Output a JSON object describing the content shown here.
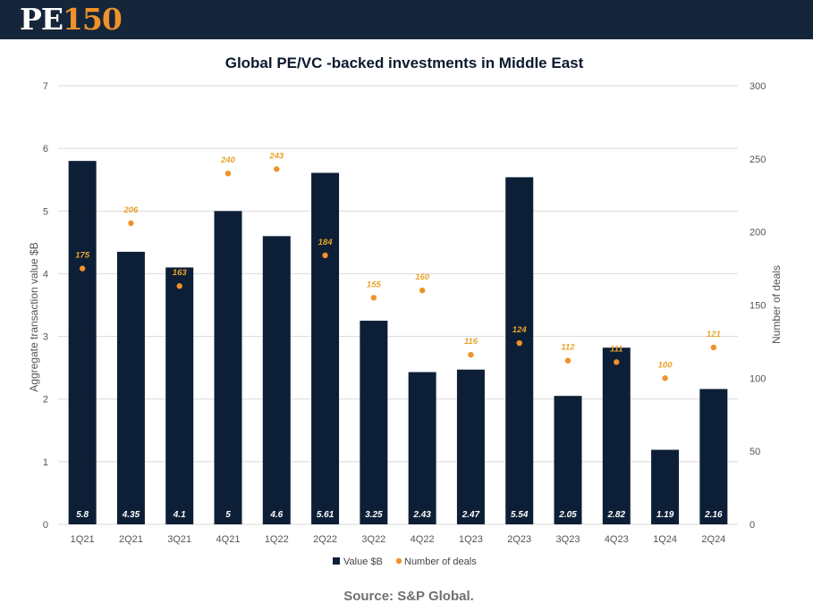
{
  "header": {
    "logo_text_pe": "PE",
    "logo_text_num": "150",
    "logo_colors": {
      "pe": "#ffffff",
      "num": "#f0922b",
      "background": "#16263a"
    }
  },
  "source_text": "Source: S&P Global.",
  "chart_data": {
    "type": "bar",
    "title": "Global PE/VC -backed investments in Middle East",
    "categories": [
      "1Q21",
      "2Q21",
      "3Q21",
      "4Q21",
      "1Q22",
      "2Q22",
      "3Q22",
      "4Q22",
      "1Q23",
      "2Q23",
      "3Q23",
      "4Q23",
      "1Q24",
      "2Q24"
    ],
    "series": [
      {
        "name": "Value $B",
        "type": "bar",
        "axis": "left",
        "color": "#0d1f36",
        "values": [
          5.8,
          4.35,
          4.1,
          5,
          4.6,
          5.61,
          3.25,
          2.43,
          2.47,
          5.54,
          2.05,
          2.82,
          1.19,
          2.16
        ],
        "labels": [
          "5.8",
          "4.35",
          "4.1",
          "5",
          "4.6",
          "5.61",
          "3.25",
          "2.43",
          "2.47",
          "5.54",
          "2.05",
          "2.82",
          "1.19",
          "2.16"
        ]
      },
      {
        "name": "Number of deals",
        "type": "scatter",
        "axis": "right",
        "color": "#f0922b",
        "label_color": "#e8a32b",
        "values": [
          175,
          206,
          163,
          240,
          243,
          184,
          155,
          160,
          116,
          124,
          112,
          111,
          100,
          121
        ],
        "labels": [
          "175",
          "206",
          "163",
          "240",
          "243",
          "184",
          "155",
          "160",
          "116",
          "124",
          "112",
          "111",
          "100",
          "121"
        ]
      }
    ],
    "ylabel_left": "Aggregate transaction value $B",
    "ylabel_right": "Number of deals",
    "ylim_left": [
      0,
      7
    ],
    "ylim_right": [
      0,
      300
    ],
    "yticks_left": [
      "0",
      "1",
      "2",
      "3",
      "4",
      "5",
      "6",
      "7"
    ],
    "yticks_right": [
      "0",
      "50",
      "100",
      "150",
      "200",
      "250",
      "300"
    ],
    "grid": true,
    "legend_position": "bottom"
  }
}
